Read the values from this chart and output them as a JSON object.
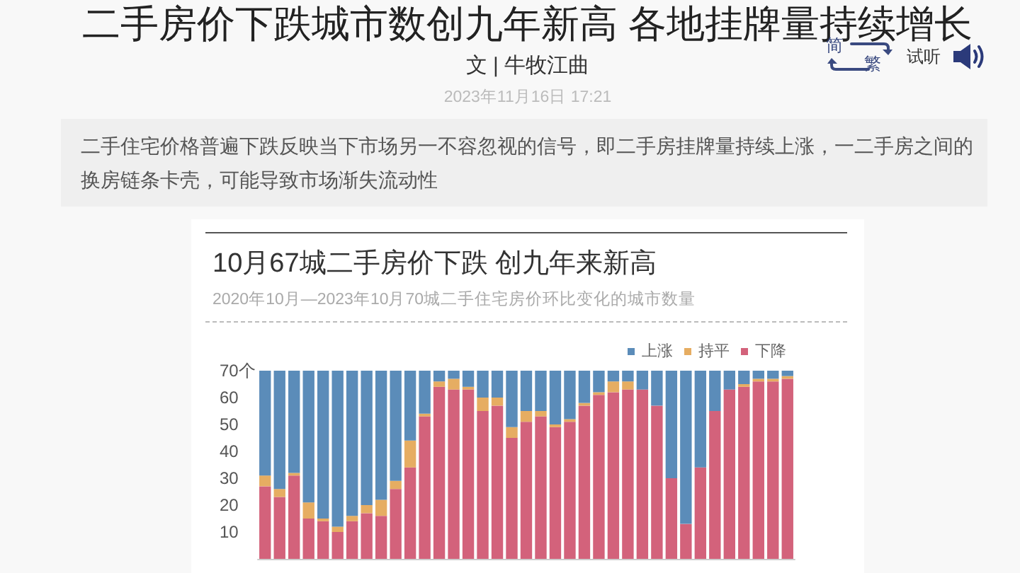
{
  "chart_data": {
    "type": "bar",
    "title": "10月67城二手房价下跌 创九年来新高",
    "subtitle": "2020年10月—2023年10月70城二手住宅房价环比变化的城市数量",
    "annotations": [
      "二手房价下跌城市数创九年新高 各地挂牌量持续增长",
      "文 | 牛牧江曲",
      "2023年11月16日 17:21",
      "二手住宅价格普遍下跌反映当下市场另一不容忽视的信号，即二手房挂牌量持续上涨，一二手房之间的换房链条卡壳，可能导致市场渐失流动性",
      "简",
      "繁",
      "试听"
    ],
    "categories": [
      null,
      null,
      null,
      null,
      null,
      null,
      null,
      null,
      null,
      null,
      null,
      null,
      null,
      null,
      null,
      null,
      null,
      null,
      null,
      null,
      null,
      null,
      null,
      null,
      null,
      null,
      null,
      null,
      null,
      null,
      null,
      null,
      null,
      null,
      null,
      null,
      null
    ],
    "series": [
      {
        "name": "下降",
        "color": "#d3627b",
        "values": [
          27,
          23,
          31,
          15,
          14,
          10,
          14,
          17,
          16,
          26,
          34,
          53,
          64,
          63,
          63,
          55,
          57,
          45,
          51,
          53,
          49,
          51,
          57,
          61,
          62,
          63,
          63,
          57,
          30,
          13,
          34,
          55,
          63,
          64,
          66,
          66,
          67
        ]
      },
      {
        "name": "持平",
        "color": "#e6ad62",
        "values": [
          4,
          3,
          1,
          6,
          1,
          2,
          2,
          3,
          6,
          3,
          10,
          1,
          2,
          4,
          1,
          5,
          3,
          4,
          4,
          2,
          1,
          1,
          1,
          1,
          4,
          3,
          0,
          0,
          0,
          0,
          0,
          0,
          0,
          1,
          1,
          1,
          1
        ]
      },
      {
        "name": "上涨",
        "color": "#5b8cb9",
        "values": [
          39,
          44,
          38,
          49,
          55,
          58,
          54,
          50,
          48,
          41,
          26,
          16,
          4,
          3,
          6,
          10,
          10,
          21,
          15,
          15,
          20,
          18,
          12,
          8,
          4,
          4,
          7,
          13,
          40,
          57,
          36,
          15,
          7,
          5,
          3,
          3,
          2
        ]
      }
    ],
    "stacked": true,
    "ylim": [
      0,
      70
    ],
    "yticks": [
      10,
      20,
      30,
      40,
      50,
      60,
      {
        "value": 70,
        "label": "70个"
      }
    ],
    "legend": "top right",
    "tick_labels": "y"
  }
}
